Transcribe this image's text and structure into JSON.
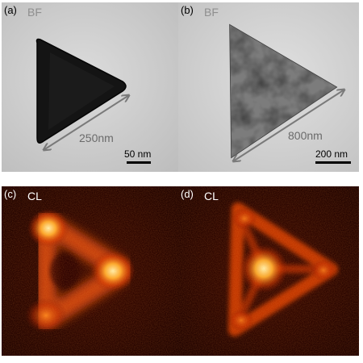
{
  "panels": [
    {
      "label": "(a)",
      "mode": "BF",
      "dimension": "250nm",
      "scale": "50 nm"
    },
    {
      "label": "(b)",
      "mode": "BF",
      "dimension": "800nm",
      "scale": "200 nm"
    },
    {
      "label": "(c)",
      "mode": "CL"
    },
    {
      "label": "(d)",
      "mode": "CL"
    }
  ],
  "colors": {
    "bf_background": "#cfcfcf",
    "particle_dark": "#151515",
    "dimension_arrow": "#7a7a7a",
    "cl_background": "#2a0400",
    "cl_glow": "#ffd060"
  }
}
